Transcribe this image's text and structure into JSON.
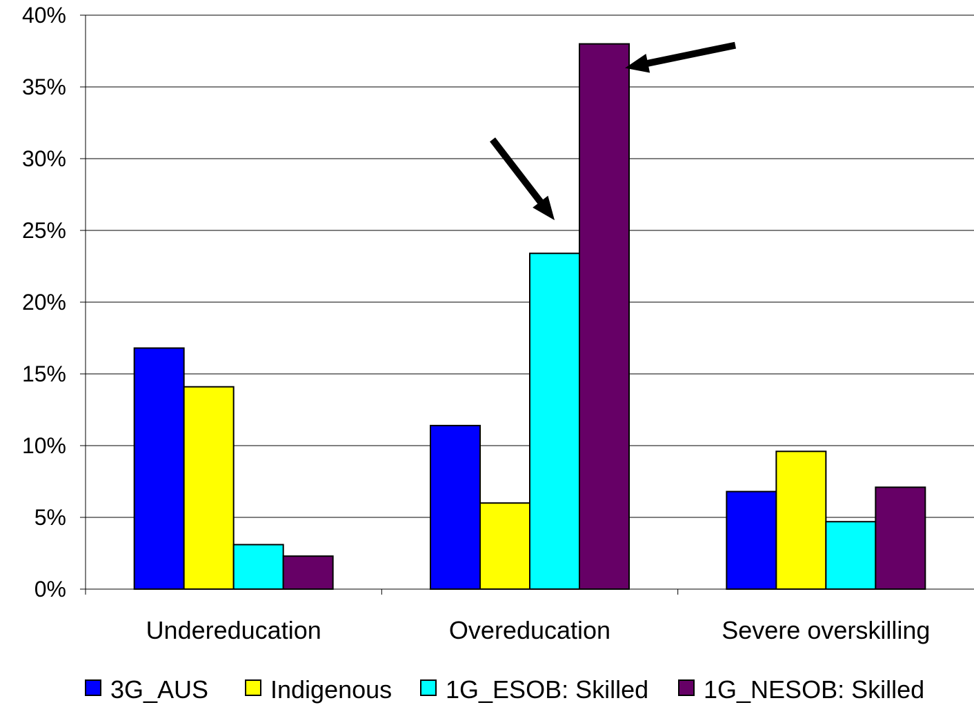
{
  "chart_data": {
    "type": "bar",
    "categories": [
      "Undereducation",
      "Overeducation",
      "Severe overskilling"
    ],
    "series": [
      {
        "name": "3G_AUS",
        "color": "#0000ff",
        "values": [
          16.8,
          11.4,
          6.8
        ]
      },
      {
        "name": "Indigenous",
        "color": "#ffff00",
        "values": [
          14.1,
          6.0,
          9.6
        ]
      },
      {
        "name": "1G_ESOB: Skilled",
        "color": "#00ffff",
        "values": [
          3.1,
          23.4,
          4.7
        ]
      },
      {
        "name": "1G_NESOB: Skilled",
        "color": "#660066",
        "values": [
          2.3,
          38.0,
          7.1
        ]
      }
    ],
    "ylim": [
      0,
      40
    ],
    "yticks": [
      0,
      5,
      10,
      15,
      20,
      25,
      30,
      35,
      40
    ],
    "ytick_labels": [
      "0%",
      "5%",
      "10%",
      "15%",
      "20%",
      "25%",
      "30%",
      "35%",
      "40%"
    ],
    "grid": true,
    "legend_position": "bottom",
    "annotations": [
      {
        "type": "arrow",
        "points_to": {
          "category": "Overeducation",
          "series": "1G_ESOB: Skilled"
        }
      },
      {
        "type": "arrow",
        "points_to": {
          "category": "Overeducation",
          "series": "1G_NESOB: Skilled"
        }
      }
    ]
  }
}
